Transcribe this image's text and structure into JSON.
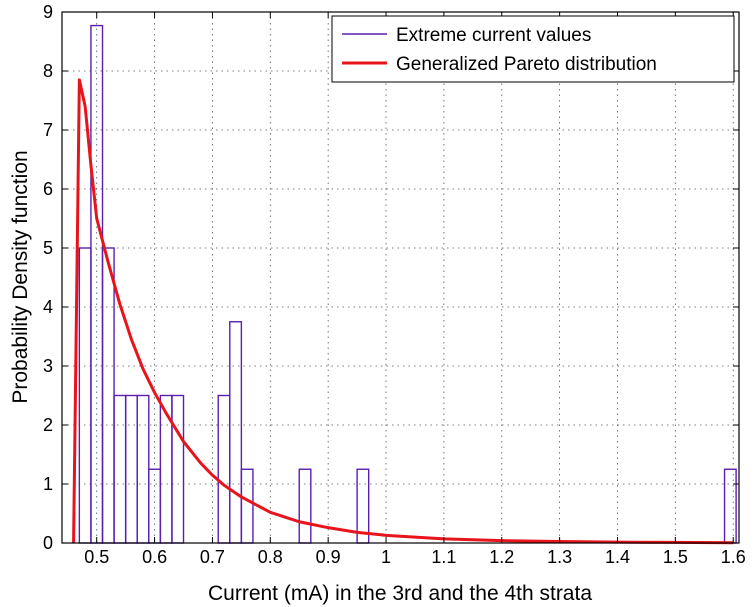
{
  "chart_data": {
    "type": "bar",
    "xlabel": "Current (mA) in the 3rd and the 4th strata",
    "ylabel": "Probability Density function",
    "xlim": [
      0.44,
      1.61
    ],
    "ylim": [
      0,
      9
    ],
    "x_ticks": [
      0.5,
      0.6,
      0.7,
      0.8,
      0.9,
      1.0,
      1.1,
      1.2,
      1.3,
      1.4,
      1.5,
      1.6
    ],
    "x_tick_labels": [
      "0.5",
      "0.6",
      "0.7",
      "0.8",
      "0.9",
      "1",
      "1.1",
      "1.2",
      "1.3",
      "1.4",
      "1.5",
      "1.6"
    ],
    "y_ticks": [
      0,
      1,
      2,
      3,
      4,
      5,
      6,
      7,
      8,
      9
    ],
    "y_tick_labels": [
      "0",
      "1",
      "2",
      "3",
      "4",
      "5",
      "6",
      "7",
      "8",
      "9"
    ],
    "grid": true,
    "legend_position": "top-right",
    "series": [
      {
        "name": "Extreme current values",
        "kind": "histogram",
        "color": "#5a1fb0",
        "bin_width": 0.02,
        "bin_starts": [
          0.47,
          0.49,
          0.51,
          0.53,
          0.55,
          0.57,
          0.59,
          0.61,
          0.63,
          0.65,
          0.67,
          0.69,
          0.71,
          0.73,
          0.75,
          0.77,
          0.79,
          0.81,
          0.83,
          0.85,
          0.87,
          0.89,
          0.91,
          0.93,
          0.95,
          1.585
        ],
        "values": [
          5.0,
          8.77,
          5.0,
          2.5,
          2.5,
          2.5,
          1.25,
          2.5,
          2.5,
          0,
          0,
          0,
          2.5,
          3.75,
          1.25,
          0,
          0,
          0,
          0,
          1.25,
          0,
          0,
          0,
          0,
          1.25,
          1.25
        ]
      },
      {
        "name": "Generalized Pareto distribution",
        "kind": "curve",
        "color": "#e8141c",
        "x": [
          0.46,
          0.47,
          0.48,
          0.49,
          0.5,
          0.52,
          0.54,
          0.56,
          0.58,
          0.6,
          0.62,
          0.65,
          0.68,
          0.7,
          0.72,
          0.75,
          0.8,
          0.85,
          0.9,
          0.95,
          1.0,
          1.1,
          1.2,
          1.3,
          1.4,
          1.5,
          1.6
        ],
        "y": [
          0,
          7.85,
          7.4,
          6.4,
          5.5,
          4.75,
          4.05,
          3.45,
          2.95,
          2.55,
          2.2,
          1.72,
          1.35,
          1.15,
          0.98,
          0.78,
          0.52,
          0.36,
          0.26,
          0.18,
          0.13,
          0.07,
          0.04,
          0.025,
          0.015,
          0.01,
          0.005
        ]
      }
    ]
  }
}
